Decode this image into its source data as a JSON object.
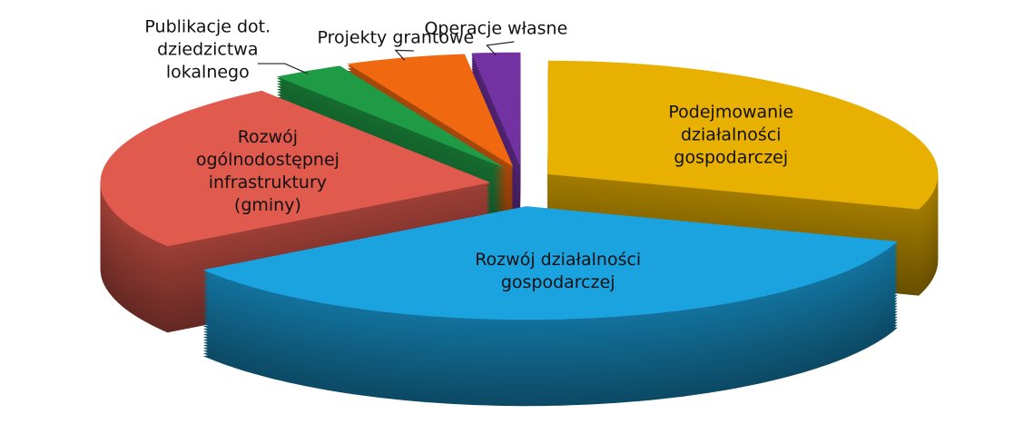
{
  "chart_data": {
    "type": "pie3d",
    "categories": [
      "Podejmowanie działalności gospodarczej",
      "Rozwój działalności gospodarczej",
      "Rozwój ogólnodostępnej infrastruktury (gminy)",
      "Publikacje dot. dziedzictwa lokalnego",
      "Projekty grantowe",
      "Operacje własne"
    ],
    "values": [
      30,
      35.5,
      24.5,
      3,
      5,
      2
    ],
    "colors": [
      "#e8b000",
      "#1ba3e0",
      "#e05a4e",
      "#1f9a45",
      "#f0680f",
      "#7232a2"
    ]
  }
}
